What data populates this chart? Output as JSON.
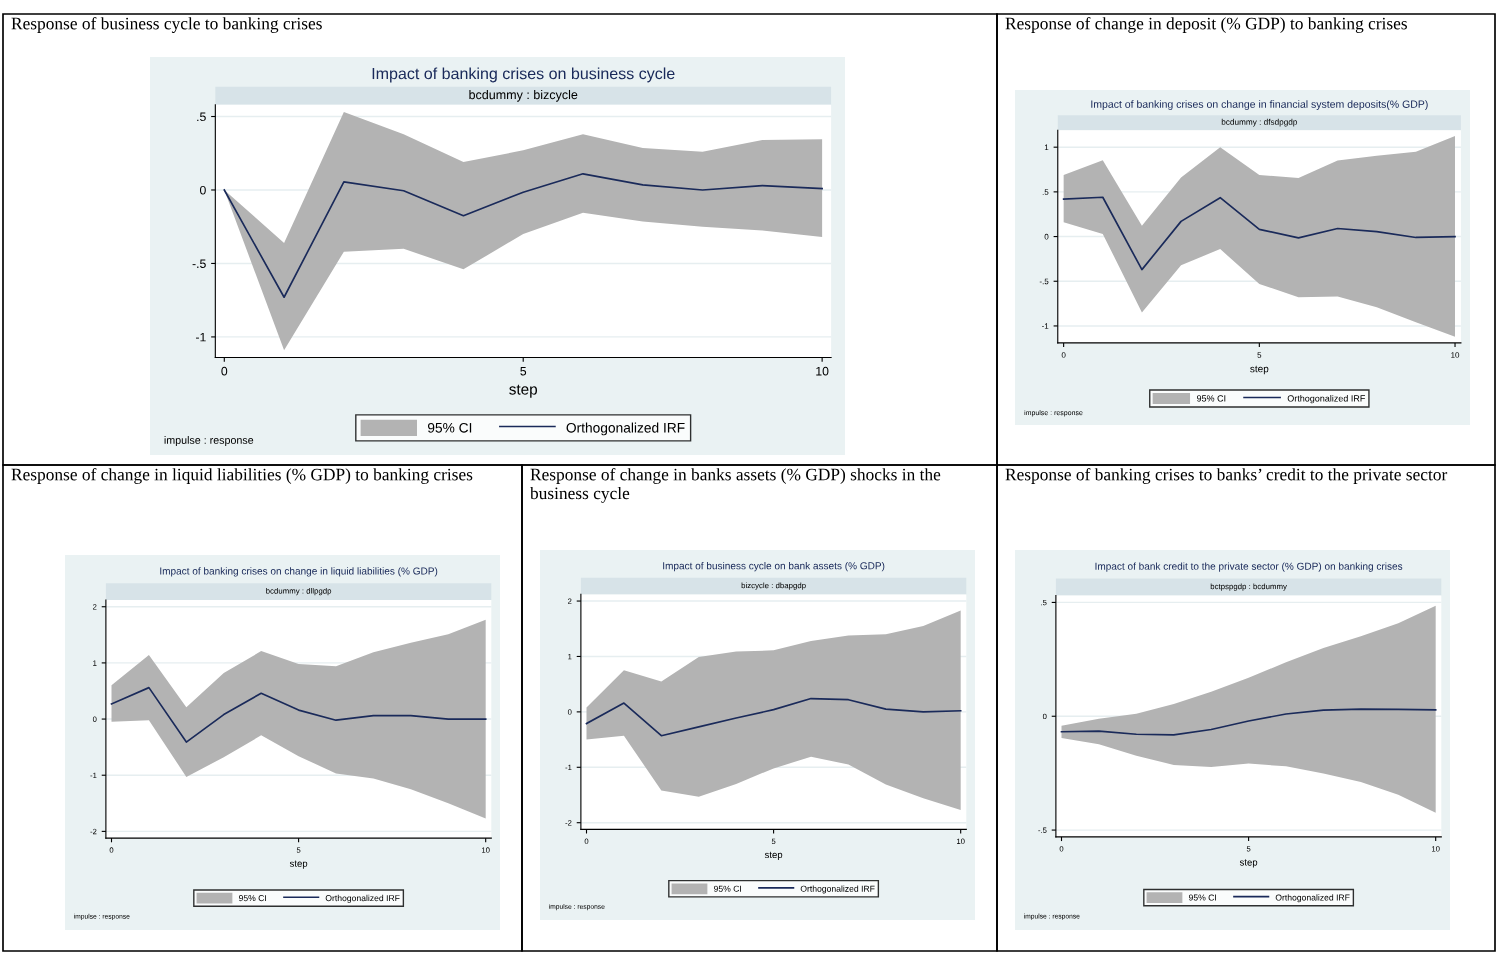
{
  "chart_data": [
    {
      "type": "line",
      "title": "Impact of banking crises on business cycle",
      "subtitle": "bcdummy : bizcycle",
      "xlabel": "step",
      "annotations": [
        "Response of business cycle to banking crises",
        "impulse : response"
      ],
      "x": [
        0,
        1,
        2,
        3,
        4,
        5,
        6,
        7,
        8,
        9,
        10
      ],
      "series": [
        {
          "name": "95% CI",
          "type": "area",
          "color": "#b3b3b3",
          "values": [
            null,
            null,
            null,
            null,
            null,
            null,
            null,
            null,
            null,
            null,
            null
          ],
          "lower": [
            0,
            -1.09,
            -0.42,
            -0.4,
            -0.54,
            -0.3,
            -0.155,
            -0.215,
            -0.25,
            -0.275,
            -0.32
          ],
          "upper": [
            0,
            -0.36,
            0.53,
            0.38,
            0.19,
            0.27,
            0.38,
            0.285,
            0.26,
            0.34,
            0.345
          ]
        },
        {
          "name": "Orthogonalized IRF",
          "color": "#1a2a5a",
          "values": [
            0,
            -0.73,
            0.055,
            -0.005,
            -0.175,
            -0.015,
            0.11,
            0.035,
            0.0,
            0.03,
            0.01
          ]
        }
      ],
      "xlim": [
        -0.15,
        10.15
      ],
      "xticks": [
        0,
        5,
        10
      ],
      "ylim": [
        -1.14,
        0.58
      ],
      "yticks": [
        {
          "value": -1,
          "label": "-1"
        },
        {
          "value": -0.5,
          "label": "-.5"
        },
        0,
        {
          "value": 0.5,
          "label": ".5"
        }
      ],
      "grid": "y",
      "legend": "bottom"
    },
    {
      "type": "line",
      "title": "Impact of banking crises on change in financial system deposits(% GDP)",
      "subtitle": "bcdummy : dfsdpgdp",
      "xlabel": "step",
      "annotations": [
        "Response of change in deposit (% GDP) to banking crises",
        "impulse : response"
      ],
      "x": [
        0,
        1,
        2,
        3,
        4,
        5,
        6,
        7,
        8,
        9,
        10
      ],
      "series": [
        {
          "name": "95% CI",
          "type": "area",
          "color": "#b3b3b3",
          "values": [
            null,
            null,
            null,
            null,
            null,
            null,
            null,
            null,
            null,
            null,
            null
          ],
          "lower": [
            0.16,
            0.03,
            -0.85,
            -0.32,
            -0.14,
            -0.53,
            -0.68,
            -0.67,
            -0.79,
            -0.96,
            -1.12
          ],
          "upper": [
            0.69,
            0.855,
            0.12,
            0.66,
            1.0,
            0.69,
            0.655,
            0.85,
            0.905,
            0.95,
            1.125
          ]
        },
        {
          "name": "Orthogonalized IRF",
          "color": "#1a2a5a",
          "values": [
            0.42,
            0.44,
            -0.37,
            0.17,
            0.435,
            0.08,
            -0.015,
            0.09,
            0.055,
            -0.01,
            0
          ]
        }
      ],
      "xlim": [
        -0.15,
        10.15
      ],
      "xticks": [
        0,
        5,
        10
      ],
      "ylim": [
        -1.19,
        1.19
      ],
      "yticks": [
        {
          "value": -1,
          "label": "-1"
        },
        {
          "value": -0.5,
          "label": "-.5"
        },
        0,
        {
          "value": 0.5,
          "label": ".5"
        },
        1
      ],
      "grid": "y",
      "legend": "bottom"
    },
    {
      "type": "line",
      "title": "Impact of banking crises on change in liquid liabilities (% GDP)",
      "subtitle": "bcdummy : dllpgdp",
      "xlabel": "step",
      "annotations": [
        "Response of change in liquid liabilities (% GDP) to banking crises",
        "impulse : response"
      ],
      "x": [
        0,
        1,
        2,
        3,
        4,
        5,
        6,
        7,
        8,
        9,
        10
      ],
      "series": [
        {
          "name": "95% CI",
          "type": "area",
          "color": "#b3b3b3",
          "values": [
            null,
            null,
            null,
            null,
            null,
            null,
            null,
            null,
            null,
            null,
            null
          ],
          "lower": [
            -0.05,
            -0.02,
            -1.03,
            -0.68,
            -0.29,
            -0.66,
            -0.97,
            -1.06,
            -1.25,
            -1.5,
            -1.77
          ],
          "upper": [
            0.6,
            1.14,
            0.21,
            0.82,
            1.21,
            0.98,
            0.94,
            1.19,
            1.36,
            1.51,
            1.77
          ]
        },
        {
          "name": "Orthogonalized IRF",
          "color": "#1a2a5a",
          "values": [
            0.27,
            0.56,
            -0.41,
            0.08,
            0.46,
            0.16,
            -0.02,
            0.06,
            0.06,
            0,
            0
          ]
        }
      ],
      "xlim": [
        -0.15,
        10.15
      ],
      "xticks": [
        0,
        5,
        10
      ],
      "ylim": [
        -2.12,
        2.12
      ],
      "yticks": [
        {
          "value": -2,
          "label": "-2"
        },
        {
          "value": -1,
          "label": "-1"
        },
        0,
        1,
        2
      ],
      "grid": "y",
      "legend": "bottom"
    },
    {
      "type": "line",
      "title": "Impact of business cycle on bank assets (% GDP)",
      "subtitle": "bizcycle : dbapgdp",
      "xlabel": "step",
      "annotations": [
        "Response of change in banks assets (% GDP) shocks in the business cycle",
        "impulse : response"
      ],
      "x": [
        0,
        1,
        2,
        3,
        4,
        5,
        6,
        7,
        8,
        9,
        10
      ],
      "series": [
        {
          "name": "95% CI",
          "type": "area",
          "color": "#b3b3b3",
          "values": [
            null,
            null,
            null,
            null,
            null,
            null,
            null,
            null,
            null,
            null,
            null
          ],
          "lower": [
            -0.5,
            -0.43,
            -1.42,
            -1.53,
            -1.3,
            -1.02,
            -0.81,
            -0.95,
            -1.31,
            -1.56,
            -1.77
          ],
          "upper": [
            0.08,
            0.75,
            0.55,
            0.99,
            1.09,
            1.11,
            1.28,
            1.38,
            1.4,
            1.55,
            1.83
          ]
        },
        {
          "name": "Orthogonalized IRF",
          "color": "#1a2a5a",
          "values": [
            -0.21,
            0.16,
            -0.43,
            -0.27,
            -0.11,
            0.04,
            0.24,
            0.22,
            0.05,
            0,
            0.02
          ]
        }
      ],
      "xlim": [
        -0.15,
        10.15
      ],
      "xticks": [
        0,
        5,
        10
      ],
      "ylim": [
        -2.12,
        2.12
      ],
      "yticks": [
        {
          "value": -2,
          "label": "-2"
        },
        {
          "value": -1,
          "label": "-1"
        },
        0,
        1,
        2
      ],
      "grid": "y",
      "legend": "bottom"
    },
    {
      "type": "line",
      "title": "Impact of bank credit to the private sector (% GDP) on banking crises",
      "subtitle": "bctpspgdp : bcdummy",
      "xlabel": "step",
      "annotations": [
        "Response of banking crises to banks’ credit to the private sector",
        "impulse : response"
      ],
      "x": [
        0,
        1,
        2,
        3,
        4,
        5,
        6,
        7,
        8,
        9,
        10
      ],
      "series": [
        {
          "name": "95% CI",
          "type": "area",
          "color": "#b3b3b3",
          "values": [
            null,
            null,
            null,
            null,
            null,
            null,
            null,
            null,
            null,
            null,
            null
          ],
          "lower": [
            -0.096,
            -0.123,
            -0.173,
            -0.214,
            -0.223,
            -0.208,
            -0.22,
            -0.252,
            -0.289,
            -0.345,
            -0.424
          ],
          "upper": [
            -0.042,
            -0.011,
            0.011,
            0.054,
            0.108,
            0.169,
            0.237,
            0.3,
            0.351,
            0.408,
            0.485
          ]
        },
        {
          "name": "Orthogonalized IRF",
          "color": "#1a2a5a",
          "values": [
            -0.068,
            -0.065,
            -0.079,
            -0.082,
            -0.058,
            -0.021,
            0.01,
            0.027,
            0.031,
            0.03,
            0.028
          ]
        }
      ],
      "xlim": [
        -0.15,
        10.15
      ],
      "xticks": [
        0,
        5,
        10
      ],
      "ylim": [
        -0.53,
        0.53
      ],
      "yticks": [
        {
          "value": -0.5,
          "label": "-.5"
        },
        0,
        {
          "value": 0.5,
          "label": ".5"
        }
      ],
      "grid": "y",
      "legend": "bottom"
    }
  ]
}
